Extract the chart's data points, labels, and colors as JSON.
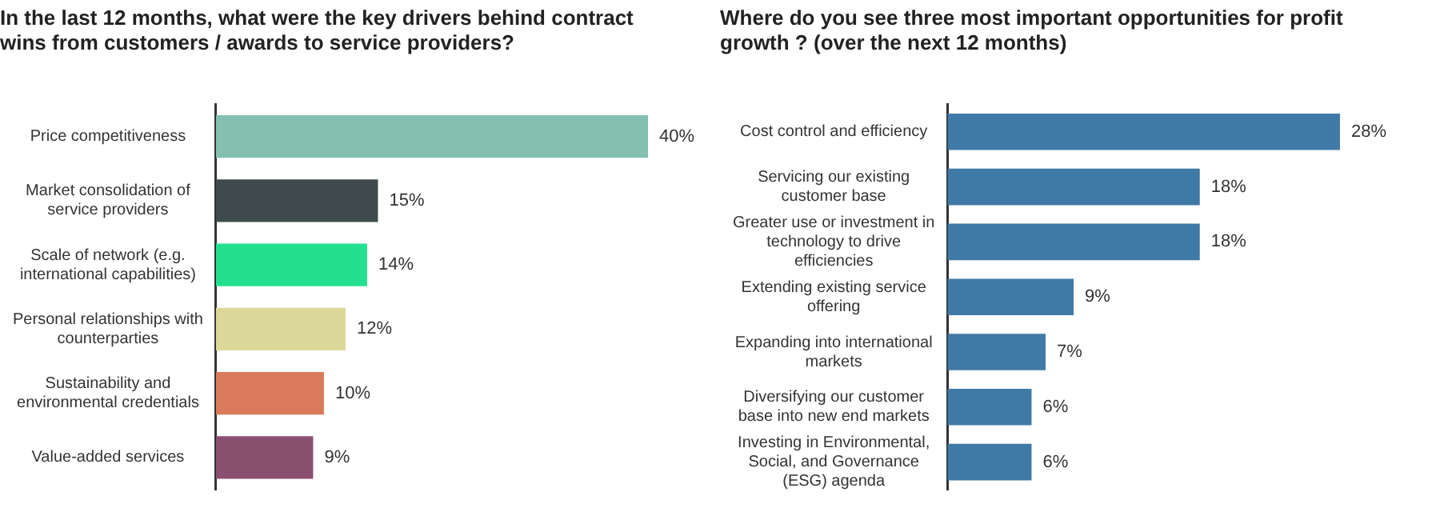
{
  "chart_data": [
    {
      "type": "bar",
      "orientation": "horizontal",
      "title": "In the last 12 months, what were the key drivers behind contract wins from customers / awards to service providers?",
      "categories": [
        "Price competitiveness",
        "Market consolidation of service providers",
        "Scale of network (e.g. international capabilities)",
        "Personal relationships with counterparties",
        "Sustainability and environmental credentials",
        "Value-added services"
      ],
      "values": [
        40,
        15,
        14,
        12,
        10,
        9
      ],
      "colors": [
        "#84bfb0",
        "#3e4a4c",
        "#22e08f",
        "#dcd89a",
        "#d97b5a",
        "#8b5070"
      ],
      "value_labels": [
        "40%",
        "15%",
        "14%",
        "12%",
        "10%",
        "9%"
      ],
      "tick_labels": "y",
      "grid": false,
      "legend": false
    },
    {
      "type": "bar",
      "orientation": "horizontal",
      "title": "Where do you see three most important opportunities for profit growth ? (over the next 12 months)",
      "categories": [
        "Cost control and efficiency",
        "Servicing our existing customer base",
        "Greater use or investment in technology to drive efficiencies",
        "Extending existing service offering",
        "Expanding into international markets",
        "Diversifying our customer base into new end markets",
        "Investing in Environmental, Social, and Governance (ESG) agenda"
      ],
      "values": [
        28,
        18,
        18,
        9,
        7,
        6,
        6
      ],
      "color": "#3f7aa6",
      "value_labels": [
        "28%",
        "18%",
        "18%",
        "9%",
        "7%",
        "6%",
        "6%"
      ],
      "tick_labels": "y",
      "grid": false,
      "legend": false
    }
  ]
}
